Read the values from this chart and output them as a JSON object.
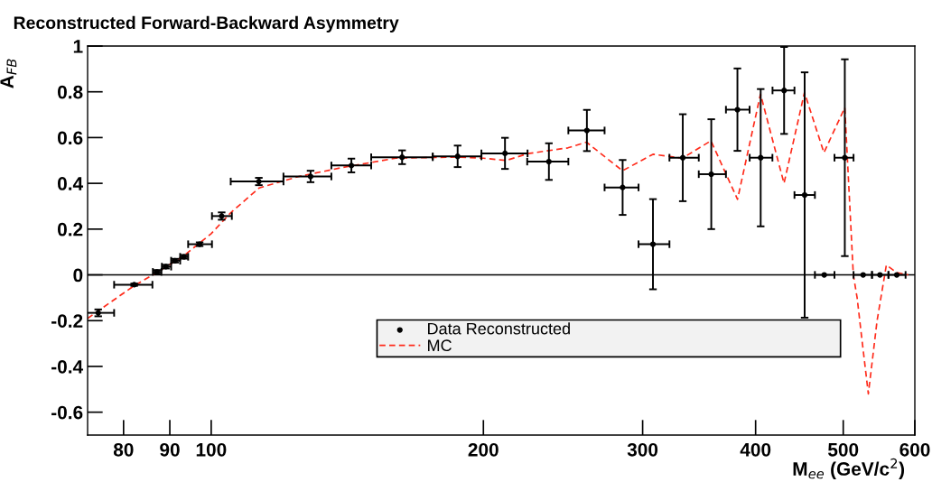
{
  "chart_data": {
    "type": "scatter",
    "title": "Reconstructed Forward-Backward Asymmetry",
    "xlabel": "M$_{ee}$ (GeV/c$^{2}$)",
    "ylabel": "A$_{FB}$",
    "log": "x",
    "xlim": [
      73,
      600
    ],
    "ylim": [
      -0.7,
      1
    ],
    "xticks": [
      80,
      90,
      100,
      200,
      300,
      400,
      500,
      600
    ],
    "yticks": [
      -0.6,
      -0.4,
      -0.2,
      0,
      0.2,
      0.4,
      0.6,
      0.8,
      1
    ],
    "grid": false,
    "legend": "bottom",
    "marker": "circle",
    "ref_lines": [
      {
        "axis": "y",
        "value": 0,
        "color": "#000000"
      }
    ],
    "series": [
      {
        "name": "Data Reconstructed",
        "color": "#000000",
        "x": [
          75,
          82.2,
          87.1,
          89.1,
          91.2,
          93.3,
          97.1,
          102.7,
          112.9,
          128.8,
          142.9,
          162.6,
          187.3,
          211.3,
          236.3,
          260.3,
          285.1,
          308,
          332.3,
          357.3,
          381.9,
          405.2,
          430.1,
          453.2,
          476.4,
          502,
          526,
          549,
          573
        ],
        "values": [
          -0.166,
          -0.043,
          0.013,
          0.036,
          0.062,
          0.079,
          0.134,
          0.257,
          0.408,
          0.43,
          0.478,
          0.514,
          0.518,
          0.531,
          0.495,
          0.631,
          0.382,
          0.134,
          0.512,
          0.44,
          0.722,
          0.512,
          0.806,
          0.349,
          0,
          0.512,
          0,
          0,
          0
        ],
        "errors": [
          0.015,
          0.005,
          0.008,
          0.008,
          0.008,
          0.008,
          0.008,
          0.016,
          0.016,
          0.025,
          0.03,
          0.03,
          0.047,
          0.068,
          0.08,
          0.09,
          0.12,
          0.197,
          0.19,
          0.24,
          0.18,
          0.3,
          0.19,
          0.536,
          null,
          0.43,
          null,
          null,
          null
        ],
        "xerrors": [
          [
            72.8,
            78.1
          ],
          [
            78.1,
            86.1
          ],
          [
            86.2,
            88.1
          ],
          [
            88.2,
            90.3
          ],
          [
            90.3,
            92.4
          ],
          [
            92.4,
            94.3
          ],
          [
            94.3,
            100.2
          ],
          [
            100.2,
            105.4
          ],
          [
            105.1,
            120.2
          ],
          [
            120.2,
            135.8
          ],
          [
            135.8,
            150.3
          ],
          [
            150.3,
            175.8
          ],
          [
            175.8,
            199
          ],
          [
            199,
            223.8
          ],
          [
            223.6,
            248.3
          ],
          [
            248.3,
            272.3
          ],
          [
            272.3,
            296.9
          ],
          [
            296.9,
            321.2
          ],
          [
            321.2,
            346.1
          ],
          [
            346.1,
            370.9
          ],
          [
            370.9,
            393.9
          ],
          [
            394,
            417.5
          ],
          [
            417.6,
            441.6
          ],
          [
            441.6,
            465.2
          ],
          [
            465.2,
            489
          ],
          [
            489,
            513.3
          ],
          [
            513.3,
            538
          ],
          [
            538,
            561
          ],
          [
            561,
            586
          ]
        ]
      },
      {
        "name": "MC",
        "type": "line",
        "color": "#ff2a1a",
        "line_style": "dashed",
        "marker": "none",
        "x": [
          73,
          82,
          87,
          93,
          100,
          105,
          113,
          125,
          140,
          160,
          187,
          200,
          212,
          224,
          248,
          260,
          285,
          308,
          332,
          357,
          382,
          405,
          430,
          453,
          476,
          502,
          513,
          518,
          525,
          533,
          545,
          558,
          573,
          590
        ],
        "values": [
          -0.19,
          -0.05,
          0.01,
          0.08,
          0.18,
          0.27,
          0.38,
          0.43,
          0.47,
          0.51,
          0.515,
          0.51,
          0.5,
          0.53,
          0.555,
          0.58,
          0.455,
          0.527,
          0.51,
          0.586,
          0.33,
          0.79,
          0.4,
          0.797,
          0.534,
          0.731,
          0,
          -0.1,
          -0.3,
          -0.52,
          -0.2,
          0.043,
          0.01,
          0
        ]
      }
    ]
  }
}
